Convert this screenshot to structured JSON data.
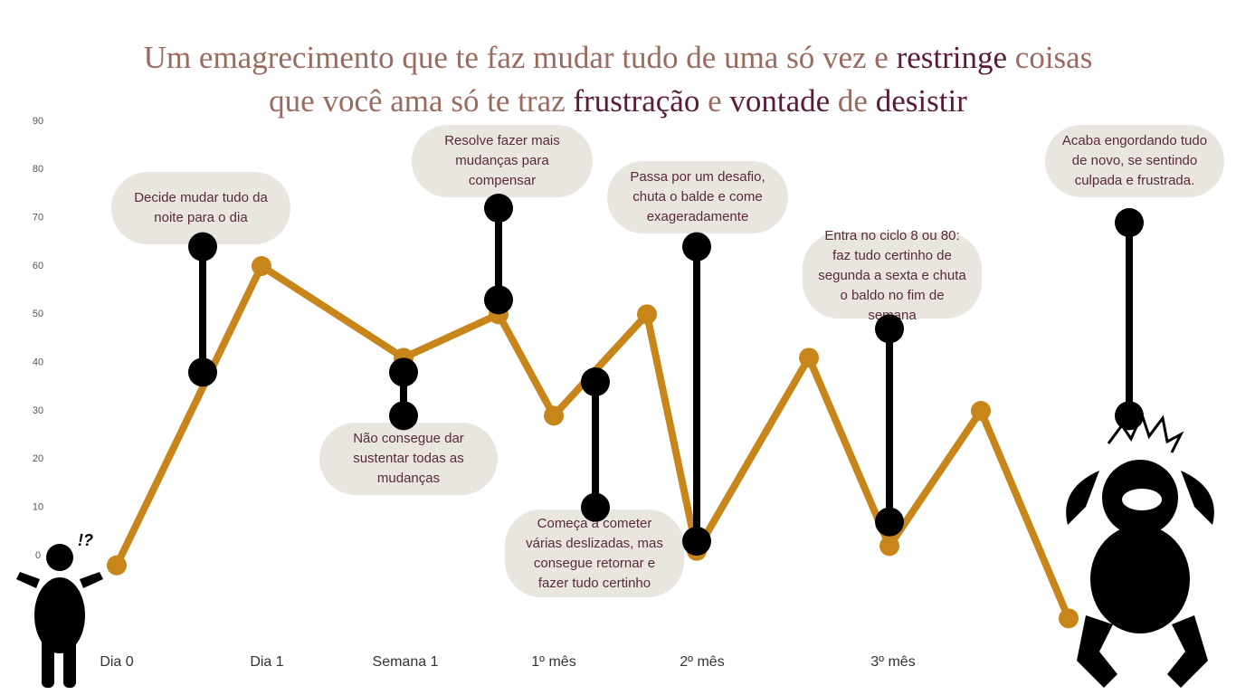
{
  "chart_data": {
    "type": "line",
    "title_parts": [
      {
        "text": "Um emagrecimento que te faz mudar tudo de uma só vez e ",
        "color": "#9b6a5e"
      },
      {
        "text": "restringe",
        "color": "#5a1a3a"
      },
      {
        "text": " coisas que você ama só te traz ",
        "color": "#9b6a5e"
      },
      {
        "text": "frustração",
        "color": "#5a1a3a"
      },
      {
        "text": " e ",
        "color": "#9b6a5e"
      },
      {
        "text": "vontade",
        "color": "#5a1a3a"
      },
      {
        "text": " de ",
        "color": "#9b6a5e"
      },
      {
        "text": "desistir",
        "color": "#5a1a3a"
      }
    ],
    "categories": [
      "Dia 0",
      "Dia 1",
      "Semana 1",
      null,
      "1º mês",
      null,
      "2º mês",
      null,
      "3º mês",
      null,
      null
    ],
    "values": [
      -2,
      60,
      41,
      50,
      29,
      50,
      1,
      41,
      2,
      30,
      -13
    ],
    "color": "#c8851a",
    "ylim": [
      0,
      90
    ],
    "yticks": [
      0,
      10,
      20,
      30,
      40,
      50,
      60,
      70,
      80,
      90
    ],
    "annotations": [
      {
        "text": "Decide mudar tudo da noite para o dia",
        "range": [
          64,
          38
        ]
      },
      {
        "text": "Não consegue dar sustentar todas as mudanças",
        "range": [
          38,
          29
        ]
      },
      {
        "text": "Resolve fazer mais mudanças para compensar",
        "range": [
          72,
          53
        ]
      },
      {
        "text": "Começa a cometer várias deslizadas, mas consegue retornar e fazer tudo certinho",
        "range": [
          36,
          10
        ]
      },
      {
        "text": "Passa por um desafio, chuta o balde e come exageradamente",
        "range": [
          64,
          3
        ]
      },
      {
        "text": "Entra no ciclo 8 ou 80: faz tudo certinho de segunda a sexta e chuta o baldo no fim de semana",
        "range": [
          47,
          7
        ]
      },
      {
        "text": "Acaba engordando tudo de novo, se sentindo culpada e frustrada.",
        "range": [
          69,
          29
        ]
      }
    ],
    "annotation_color": "#000000"
  }
}
